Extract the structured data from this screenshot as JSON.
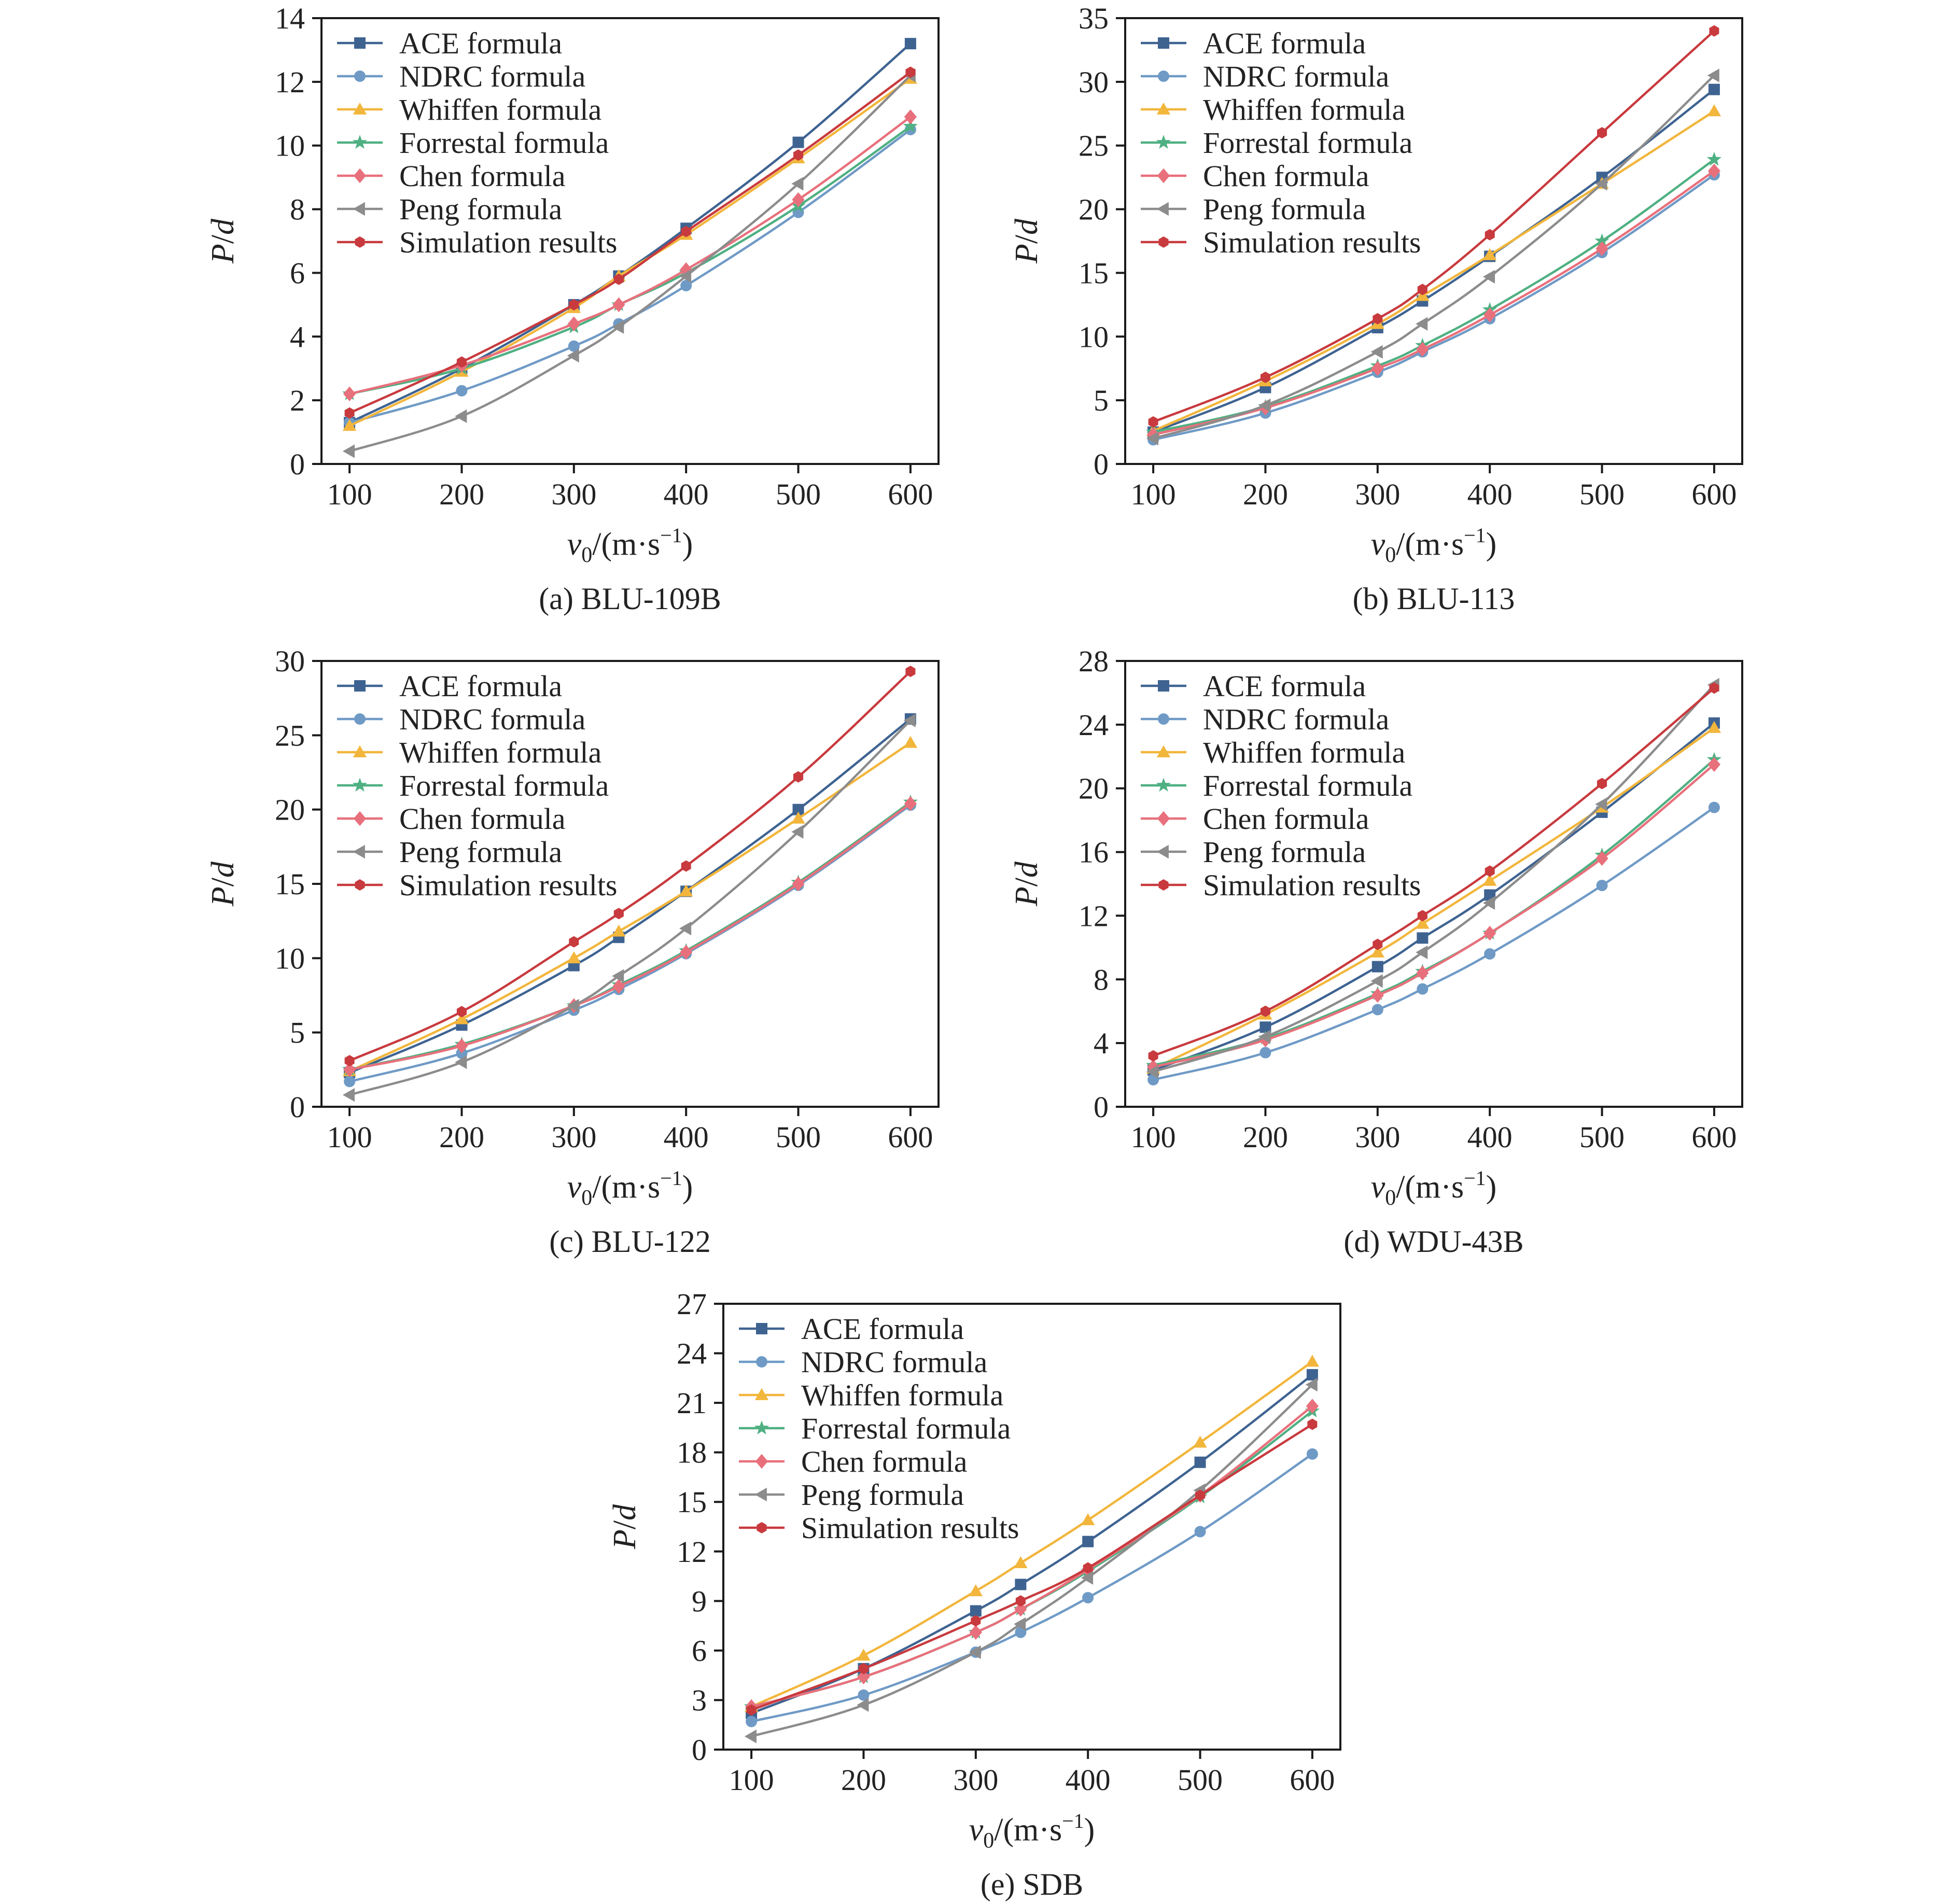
{
  "colors": {
    "ACE": "#3e6391",
    "NDRC": "#6f9ac6",
    "Whiffen": "#f2b63c",
    "Forrestal": "#4fb082",
    "Chen": "#e8707c",
    "Peng": "#8c8c8c",
    "Simulation": "#c83a3e"
  },
  "markers": {
    "ACE": "square",
    "NDRC": "circle",
    "Whiffen": "triangle-up",
    "Forrestal": "star",
    "Chen": "diamond",
    "Peng": "triangle-left",
    "Simulation": "hexagon"
  },
  "chart_data": [
    {
      "type": "line",
      "caption": "(a) BLU-109B",
      "xlabel": "v0/(m·s−1)",
      "ylabel": "P/d",
      "x": [
        100,
        200,
        300,
        340,
        400,
        500,
        600
      ],
      "xticks": [
        100,
        200,
        300,
        400,
        500,
        600
      ],
      "yticks": [
        0,
        2,
        4,
        6,
        8,
        10,
        12,
        14
      ],
      "xlim": [
        75,
        625
      ],
      "ylim": [
        0,
        14
      ],
      "grid": false,
      "legend_position": "upper-left",
      "series": [
        {
          "name": "ACE formula",
          "key": "ACE",
          "values": [
            1.3,
            3.0,
            5.0,
            5.9,
            7.4,
            10.1,
            13.2
          ]
        },
        {
          "name": "NDRC formula",
          "key": "NDRC",
          "values": [
            1.3,
            2.3,
            3.7,
            4.4,
            5.6,
            7.9,
            10.5
          ]
        },
        {
          "name": "Whiffen formula",
          "key": "Whiffen",
          "values": [
            1.2,
            2.9,
            4.9,
            5.9,
            7.2,
            9.6,
            12.1
          ]
        },
        {
          "name": "Forrestal formula",
          "key": "Forrestal",
          "values": [
            2.2,
            3.0,
            4.3,
            5.0,
            6.0,
            8.1,
            10.6
          ]
        },
        {
          "name": "Chen formula",
          "key": "Chen",
          "values": [
            2.2,
            3.1,
            4.4,
            5.0,
            6.1,
            8.3,
            10.9
          ]
        },
        {
          "name": "Peng formula",
          "key": "Peng",
          "values": [
            0.4,
            1.5,
            3.4,
            4.3,
            5.9,
            8.8,
            12.2
          ]
        },
        {
          "name": "Simulation results",
          "key": "Simulation",
          "values": [
            1.6,
            3.2,
            5.0,
            5.8,
            7.3,
            9.7,
            12.3
          ]
        }
      ]
    },
    {
      "type": "line",
      "caption": "(b) BLU-113",
      "xlabel": "v0/(m·s−1)",
      "ylabel": "P/d",
      "x": [
        100,
        200,
        300,
        340,
        400,
        500,
        600
      ],
      "xticks": [
        100,
        200,
        300,
        400,
        500,
        600
      ],
      "yticks": [
        0,
        5,
        10,
        15,
        20,
        25,
        30,
        35
      ],
      "xlim": [
        75,
        625
      ],
      "ylim": [
        0,
        35
      ],
      "grid": false,
      "legend_position": "upper-left",
      "series": [
        {
          "name": "ACE formula",
          "key": "ACE",
          "values": [
            2.5,
            6.0,
            10.7,
            12.8,
            16.3,
            22.5,
            29.4
          ]
        },
        {
          "name": "NDRC formula",
          "key": "NDRC",
          "values": [
            1.9,
            4.0,
            7.2,
            8.8,
            11.4,
            16.6,
            22.7
          ]
        },
        {
          "name": "Whiffen formula",
          "key": "Whiffen",
          "values": [
            2.6,
            6.5,
            11.0,
            13.2,
            16.4,
            22.0,
            27.7
          ]
        },
        {
          "name": "Forrestal formula",
          "key": "Forrestal",
          "values": [
            2.5,
            4.5,
            7.7,
            9.3,
            12.1,
            17.5,
            23.9
          ]
        },
        {
          "name": "Chen formula",
          "key": "Chen",
          "values": [
            2.3,
            4.4,
            7.5,
            9.0,
            11.7,
            16.9,
            23.0
          ]
        },
        {
          "name": "Peng formula",
          "key": "Peng",
          "values": [
            2.0,
            4.6,
            8.8,
            11.0,
            14.7,
            22.0,
            30.5
          ]
        },
        {
          "name": "Simulation results",
          "key": "Simulation",
          "values": [
            3.3,
            6.8,
            11.4,
            13.7,
            18.0,
            26.0,
            34.0
          ]
        }
      ]
    },
    {
      "type": "line",
      "caption": "(c) BLU-122",
      "xlabel": "v0/(m·s−1)",
      "ylabel": "P/d",
      "x": [
        100,
        200,
        300,
        340,
        400,
        500,
        600
      ],
      "xticks": [
        100,
        200,
        300,
        400,
        500,
        600
      ],
      "yticks": [
        0,
        5,
        10,
        15,
        20,
        25,
        30
      ],
      "xlim": [
        75,
        625
      ],
      "ylim": [
        0,
        30
      ],
      "grid": false,
      "legend_position": "upper-left",
      "series": [
        {
          "name": "ACE formula",
          "key": "ACE",
          "values": [
            2.3,
            5.5,
            9.5,
            11.4,
            14.5,
            20.0,
            26.1
          ]
        },
        {
          "name": "NDRC formula",
          "key": "NDRC",
          "values": [
            1.7,
            3.6,
            6.5,
            7.9,
            10.3,
            14.9,
            20.3
          ]
        },
        {
          "name": "Whiffen formula",
          "key": "Whiffen",
          "values": [
            2.4,
            5.9,
            10.0,
            11.8,
            14.5,
            19.4,
            24.5
          ]
        },
        {
          "name": "Forrestal formula",
          "key": "Forrestal",
          "values": [
            2.5,
            4.2,
            6.8,
            8.2,
            10.5,
            15.1,
            20.5
          ]
        },
        {
          "name": "Chen formula",
          "key": "Chen",
          "values": [
            2.5,
            4.1,
            6.8,
            8.1,
            10.4,
            15.0,
            20.4
          ]
        },
        {
          "name": "Peng formula",
          "key": "Peng",
          "values": [
            0.8,
            3.0,
            6.8,
            8.8,
            12.0,
            18.5,
            26.0
          ]
        },
        {
          "name": "Simulation results",
          "key": "Simulation",
          "values": [
            3.1,
            6.4,
            11.1,
            13.0,
            16.2,
            22.2,
            29.3
          ]
        }
      ]
    },
    {
      "type": "line",
      "caption": "(d) WDU-43B",
      "xlabel": "v0/(m·s−1)",
      "ylabel": "P/d",
      "x": [
        100,
        200,
        300,
        340,
        400,
        500,
        600
      ],
      "xticks": [
        100,
        200,
        300,
        400,
        500,
        600
      ],
      "yticks": [
        0,
        4,
        8,
        12,
        16,
        20,
        24,
        28
      ],
      "xlim": [
        75,
        625
      ],
      "ylim": [
        0,
        28
      ],
      "grid": false,
      "legend_position": "upper-left",
      "series": [
        {
          "name": "ACE formula",
          "key": "ACE",
          "values": [
            2.3,
            5.0,
            8.8,
            10.6,
            13.3,
            18.5,
            24.1
          ]
        },
        {
          "name": "NDRC formula",
          "key": "NDRC",
          "values": [
            1.7,
            3.4,
            6.1,
            7.4,
            9.6,
            13.9,
            18.8
          ]
        },
        {
          "name": "Whiffen formula",
          "key": "Whiffen",
          "values": [
            2.4,
            5.8,
            9.7,
            11.5,
            14.2,
            18.8,
            23.8
          ]
        },
        {
          "name": "Forrestal formula",
          "key": "Forrestal",
          "values": [
            2.6,
            4.3,
            7.1,
            8.5,
            10.9,
            15.8,
            21.8
          ]
        },
        {
          "name": "Chen formula",
          "key": "Chen",
          "values": [
            2.5,
            4.2,
            7.0,
            8.4,
            10.9,
            15.6,
            21.5
          ]
        },
        {
          "name": "Peng formula",
          "key": "Peng",
          "values": [
            2.2,
            4.4,
            7.9,
            9.7,
            12.8,
            19.0,
            26.5
          ]
        },
        {
          "name": "Simulation results",
          "key": "Simulation",
          "values": [
            3.2,
            6.0,
            10.2,
            12.0,
            14.8,
            20.3,
            26.3
          ]
        }
      ]
    },
    {
      "type": "line",
      "caption": "(e) SDB",
      "xlabel": "v0/(m·s−1)",
      "ylabel": "P/d",
      "x": [
        100,
        200,
        300,
        340,
        400,
        500,
        600
      ],
      "xticks": [
        100,
        200,
        300,
        400,
        500,
        600
      ],
      "yticks": [
        0,
        3,
        6,
        9,
        12,
        15,
        18,
        21,
        24,
        27
      ],
      "xlim": [
        75,
        625
      ],
      "ylim": [
        0,
        27
      ],
      "grid": false,
      "legend_position": "upper-left",
      "series": [
        {
          "name": "ACE formula",
          "key": "ACE",
          "values": [
            2.2,
            4.9,
            8.4,
            10.0,
            12.6,
            17.4,
            22.7
          ]
        },
        {
          "name": "NDRC formula",
          "key": "NDRC",
          "values": [
            1.7,
            3.3,
            5.9,
            7.1,
            9.2,
            13.2,
            17.9
          ]
        },
        {
          "name": "Whiffen formula",
          "key": "Whiffen",
          "values": [
            2.6,
            5.7,
            9.6,
            11.3,
            13.9,
            18.6,
            23.5
          ]
        },
        {
          "name": "Forrestal formula",
          "key": "Forrestal",
          "values": [
            2.6,
            4.4,
            7.1,
            8.5,
            10.8,
            15.3,
            20.5
          ]
        },
        {
          "name": "Chen formula",
          "key": "Chen",
          "values": [
            2.6,
            4.4,
            7.1,
            8.5,
            10.9,
            15.4,
            20.8
          ]
        },
        {
          "name": "Peng formula",
          "key": "Peng",
          "values": [
            0.8,
            2.7,
            5.9,
            7.6,
            10.4,
            15.7,
            22.1
          ]
        },
        {
          "name": "Simulation results",
          "key": "Simulation",
          "values": [
            2.4,
            4.9,
            7.8,
            9.0,
            11.0,
            15.4,
            19.7
          ]
        }
      ]
    }
  ]
}
